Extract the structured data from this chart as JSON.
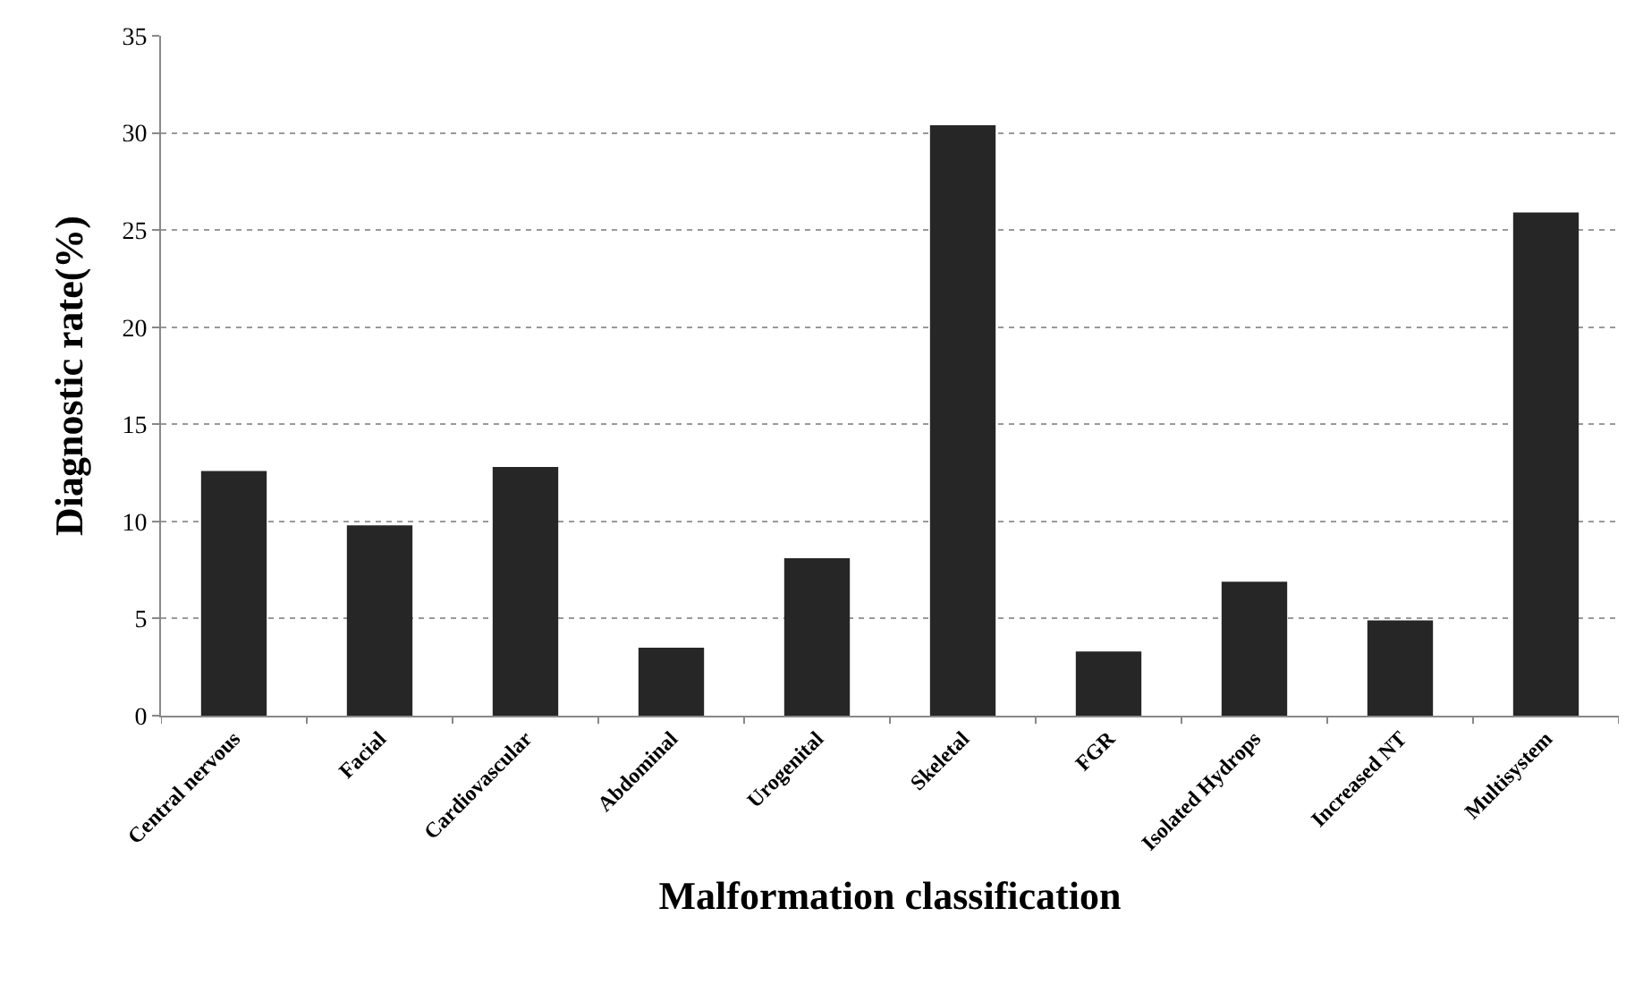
{
  "chart_data": {
    "type": "bar",
    "xlabel": "Malformation classification",
    "ylabel": "Diagnostic rate(%)",
    "categories": [
      "Central nervous",
      "Facial",
      "Cardiovascular",
      "Abdominal",
      "Urogenital",
      "Skeletal",
      "FGR",
      "Isolated Hydrops",
      "Increased NT",
      "Multisystem"
    ],
    "values": [
      12.6,
      9.8,
      12.8,
      3.5,
      8.1,
      30.4,
      3.3,
      6.9,
      4.9,
      25.9
    ],
    "color": "#262626",
    "ylim": [
      0,
      35
    ],
    "yticks": [
      0,
      5,
      10,
      15,
      20,
      25,
      30,
      35
    ],
    "grid": "y"
  }
}
